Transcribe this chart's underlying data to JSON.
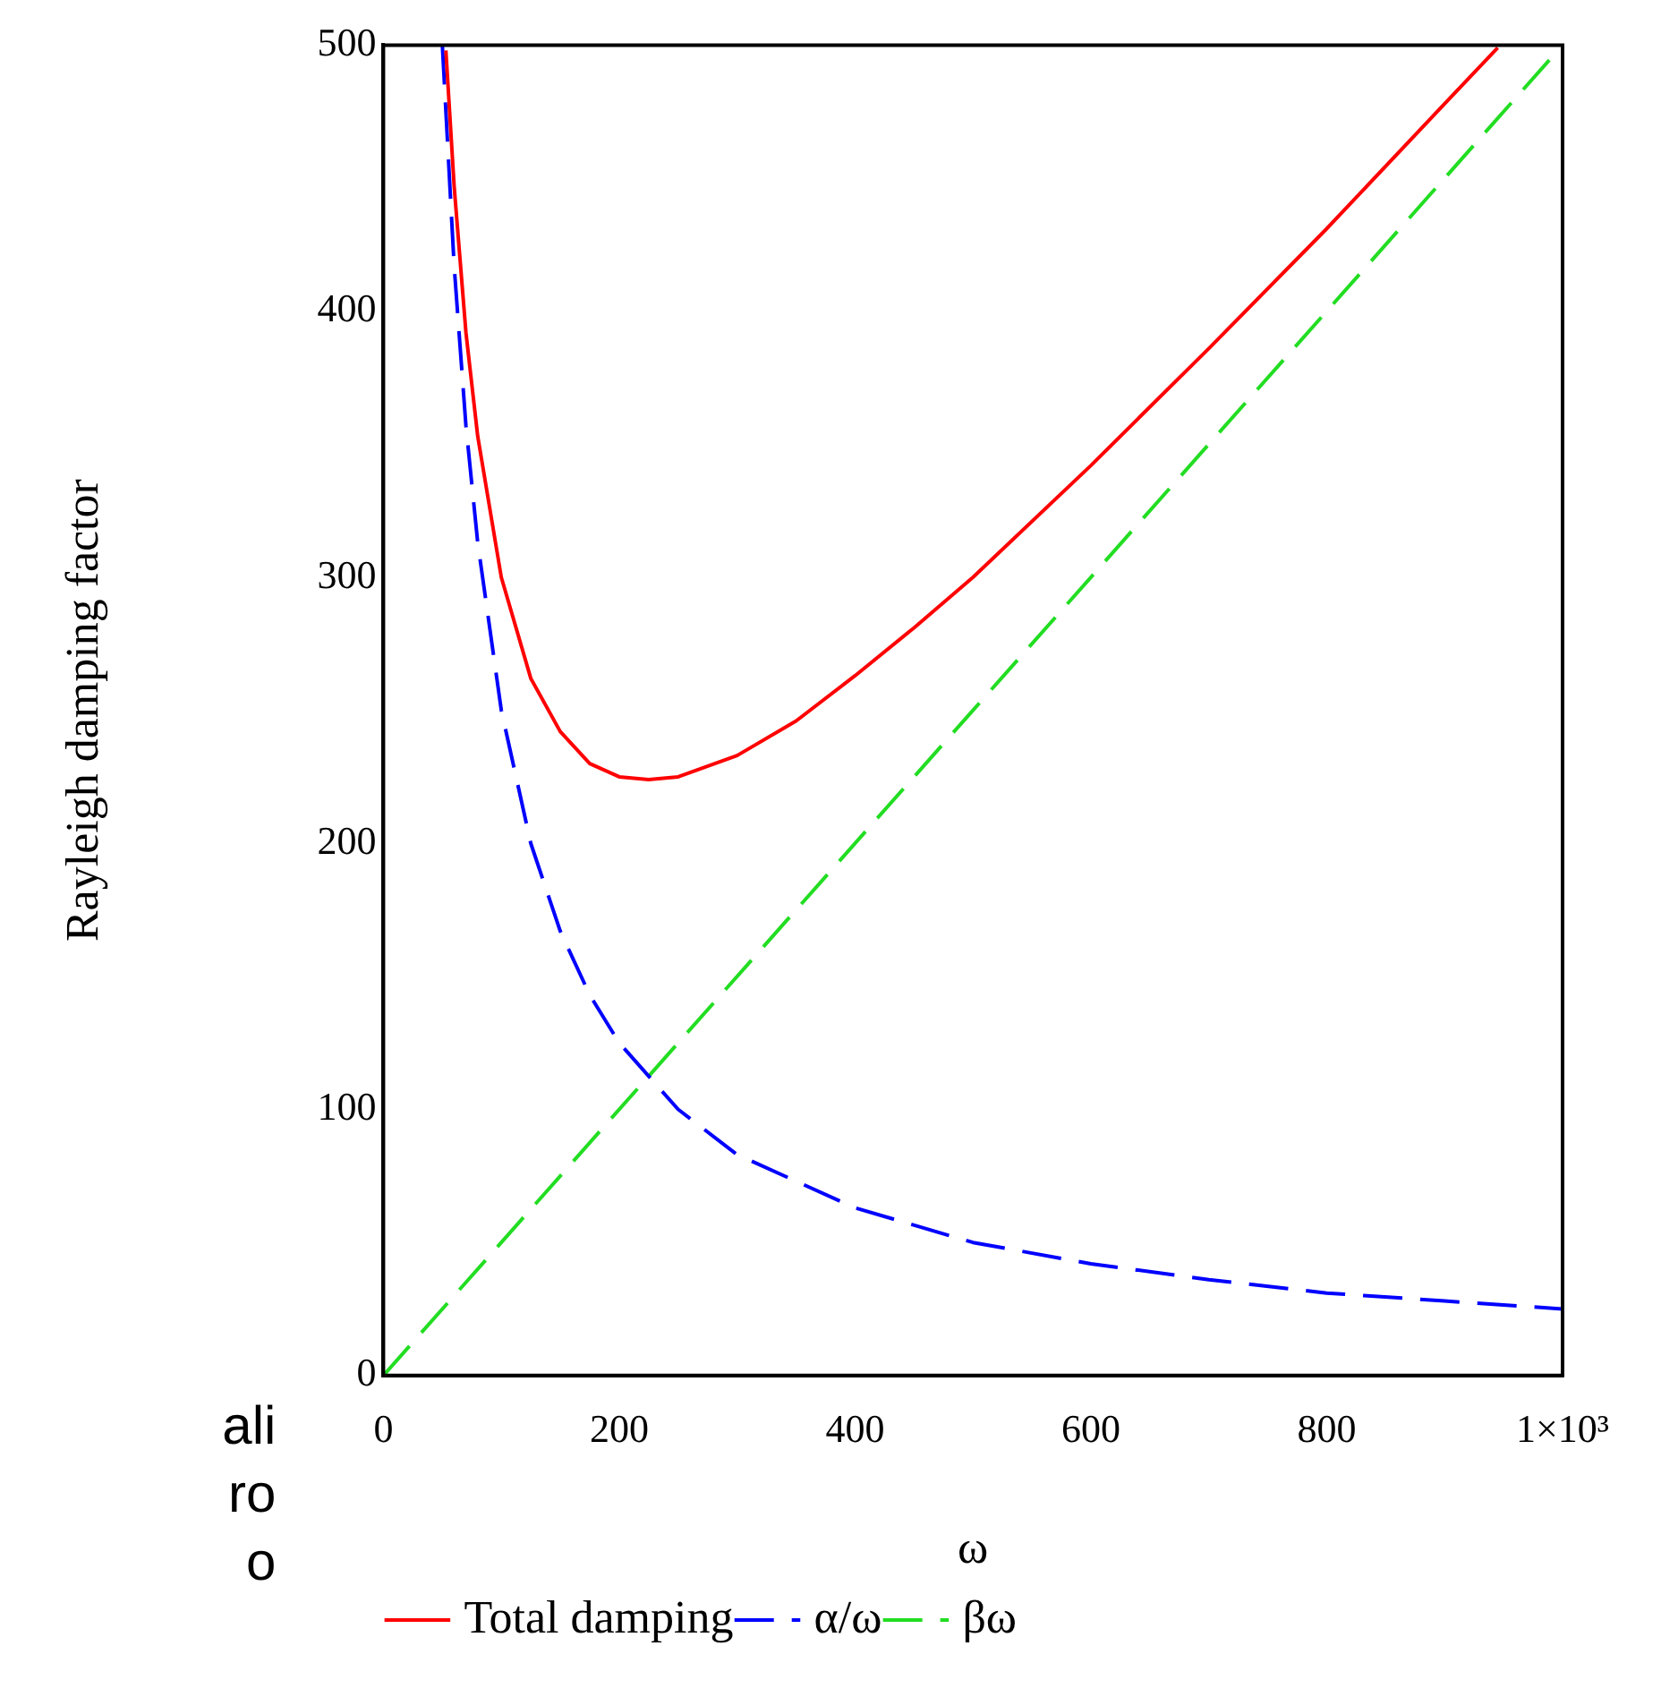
{
  "chart_data": {
    "type": "line",
    "xlabel": "ω",
    "ylabel": "Rayleigh damping factor",
    "xlim": [
      0,
      1000
    ],
    "ylim": [
      0,
      500
    ],
    "xticks": [
      0,
      200,
      400,
      600,
      800,
      {
        "value": 1000,
        "label": "1×10³"
      }
    ],
    "yticks": [
      0,
      100,
      200,
      300,
      400,
      500
    ],
    "grid": false,
    "legend": "bottom",
    "marker": "none",
    "annotations": [
      "ali",
      "ro",
      "o"
    ],
    "series": [
      {
        "name": "Total damping",
        "color": "#ff0000",
        "line_style": "solid",
        "x": [
          53,
          60,
          70,
          80,
          100,
          125,
          150,
          175,
          200,
          225,
          250,
          300,
          350,
          400,
          450,
          500,
          600,
          700,
          800,
          900,
          945
        ],
        "values": [
          498,
          447,
          392,
          353,
          300,
          262,
          242,
          230,
          225,
          224,
          225,
          233,
          246,
          263,
          281,
          300,
          342,
          386,
          431,
          478,
          499
        ]
      },
      {
        "name": "α/ω",
        "color": "#0000ff",
        "line_style": "dashed",
        "x": [
          50,
          60,
          70,
          80,
          100,
          125,
          150,
          175,
          200,
          250,
          300,
          400,
          500,
          600,
          700,
          800,
          900,
          1000
        ],
        "values": [
          500,
          417,
          357,
          313,
          250,
          200,
          167,
          143,
          125,
          100,
          83,
          63,
          50,
          42,
          36,
          31,
          28,
          25
        ]
      },
      {
        "name": "βω",
        "color": "#22dd22",
        "line_style": "dashed",
        "x": [
          0,
          500,
          1000
        ],
        "values": [
          0,
          250,
          500
        ]
      }
    ]
  }
}
